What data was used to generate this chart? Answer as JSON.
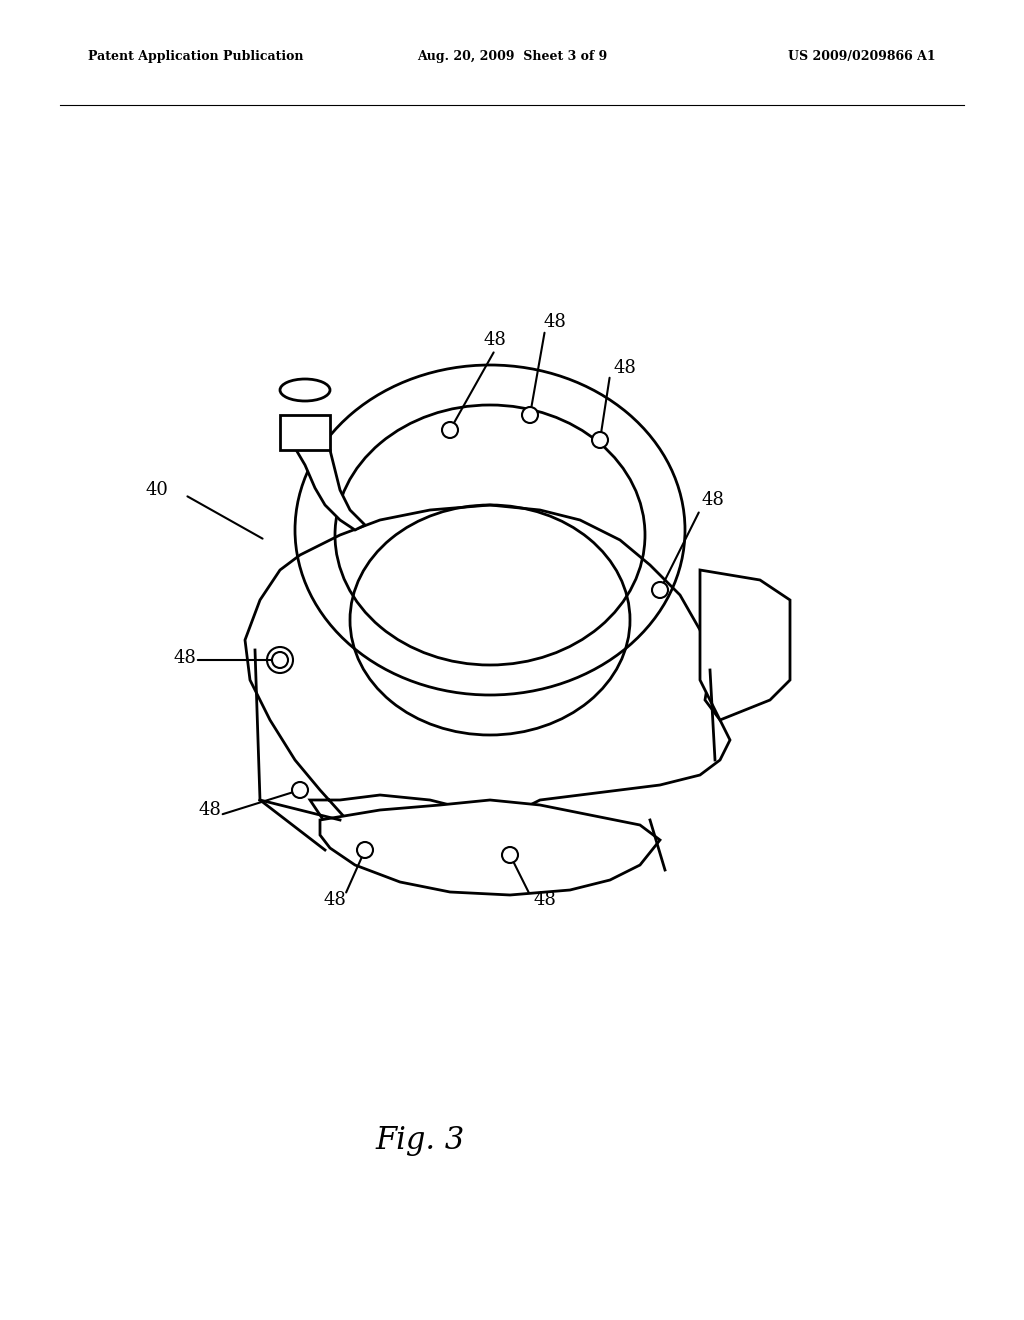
{
  "bg_color": "#ffffff",
  "line_color": "#000000",
  "line_width": 1.5,
  "fig_width": 10.24,
  "fig_height": 13.2,
  "header_left": "Patent Application Publication",
  "header_mid": "Aug. 20, 2009  Sheet 3 of 9",
  "header_right": "US 2009/0209866 A1",
  "fig_label": "Fig. 3",
  "label_40": "40",
  "label_48": "48"
}
